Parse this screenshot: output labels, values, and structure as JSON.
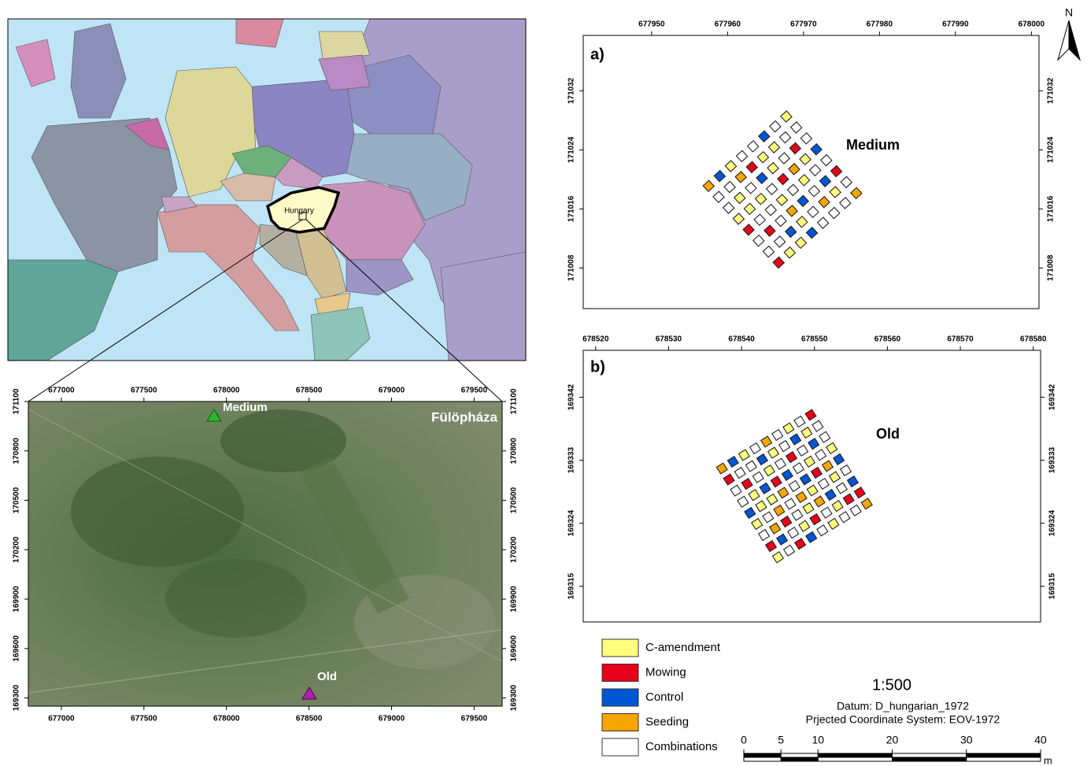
{
  "europe_map": {
    "label": "Hungary"
  },
  "site_map": {
    "title": "Fülöpháza",
    "sites": [
      "Medium",
      "Old"
    ],
    "xlim": [
      676800,
      679670
    ],
    "ylim": [
      169250,
      171100
    ],
    "xticks": [
      677000,
      677500,
      678000,
      678500,
      679000,
      679500
    ],
    "yticks": [
      169300,
      169600,
      169900,
      170200,
      170500,
      170800,
      171100
    ]
  },
  "panels": [
    {
      "label": "a)",
      "site": "Medium",
      "xlim": [
        677941,
        678001
      ],
      "ylim": [
        171002.5,
        171039.5
      ],
      "xticks": [
        677950,
        677960,
        677970,
        677980,
        677990,
        678000
      ],
      "yticks": [
        171008,
        171016,
        171024,
        171032
      ]
    },
    {
      "label": "b)",
      "site": "Old",
      "xlim": [
        678518.3,
        678581
      ],
      "ylim": [
        169309.9,
        169348.7
      ],
      "xticks": [
        678520,
        678530,
        678540,
        678550,
        678560,
        678570,
        678580
      ],
      "yticks": [
        169315,
        169324,
        169333,
        169342
      ]
    }
  ],
  "legend": [
    {
      "name": "C-amendment",
      "color": "#ffff7f"
    },
    {
      "name": "Mowing",
      "color": "#e60019"
    },
    {
      "name": "Control",
      "color": "#0055d4"
    },
    {
      "name": "Seeding",
      "color": "#f7a600"
    },
    {
      "name": "Combinations",
      "color": "#ffffff"
    }
  ],
  "scale": "1:500",
  "datum": "Datum: D_hungarian_1972",
  "projection": "Prjected Coordinate System: EOV-1972",
  "scale_bar": {
    "lim": [
      0,
      40
    ],
    "ticks": [
      0,
      5,
      10,
      20,
      30,
      40
    ],
    "unit": "m"
  },
  "north": "N"
}
